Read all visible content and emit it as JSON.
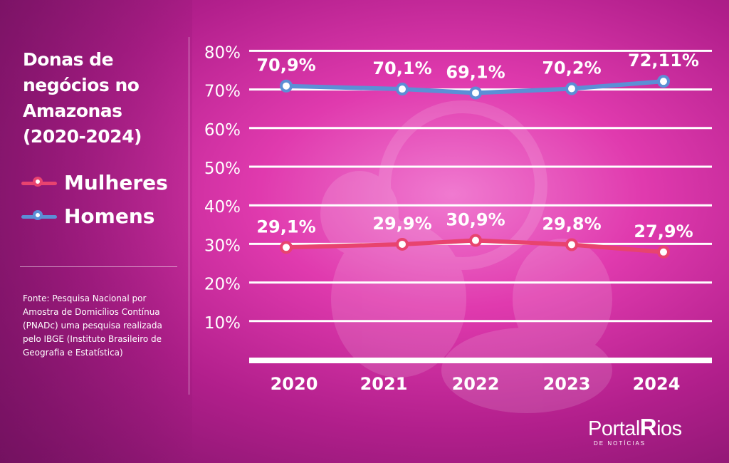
{
  "chart_data": {
    "type": "line",
    "title": "Donas de negócios no Amazonas (2020-2024)",
    "categories": [
      "2020",
      "2021",
      "2022",
      "2023",
      "2024"
    ],
    "ylim": [
      0,
      80
    ],
    "yticks": [
      10,
      20,
      30,
      40,
      50,
      60,
      70,
      80
    ],
    "ytick_labels": [
      "10%",
      "20%",
      "30%",
      "40%",
      "50%",
      "60%",
      "70%",
      "80%"
    ],
    "grid": true,
    "legend_position": "left",
    "series": [
      {
        "name": "Mulheres",
        "color": "#e8436f",
        "values": [
          29.1,
          29.9,
          30.9,
          29.8,
          27.9
        ],
        "labels": [
          "29,1%",
          "29,9%",
          "30,9%",
          "29,8%",
          "27,9%"
        ]
      },
      {
        "name": "Homens",
        "color": "#5b8fd6",
        "values": [
          70.9,
          70.1,
          69.1,
          70.2,
          72.11
        ],
        "labels": [
          "70,9%",
          "70,1%",
          "69,1%",
          "70,2%",
          "72,11%"
        ]
      }
    ]
  },
  "header": {
    "title_lines": [
      "Donas de",
      "negócios no",
      "Amazonas",
      "(2020-2024)"
    ]
  },
  "legend": {
    "women": "Mulheres",
    "men": "Homens"
  },
  "source": {
    "text": "Fonte:  Pesquisa Nacional por Amostra de Domicílios Contínua (PNADc) uma pesquisa realizada pelo IBGE (Instituto Brasileiro de Geografia e Estatística)"
  },
  "logo": {
    "part1": "Portal",
    "part2": "R",
    "part3": "ios",
    "tagline": "DE NOTÍCIAS"
  },
  "colors": {
    "women_line": "#e8436f",
    "men_line": "#5b8fd6",
    "grid": "#ffffff"
  }
}
